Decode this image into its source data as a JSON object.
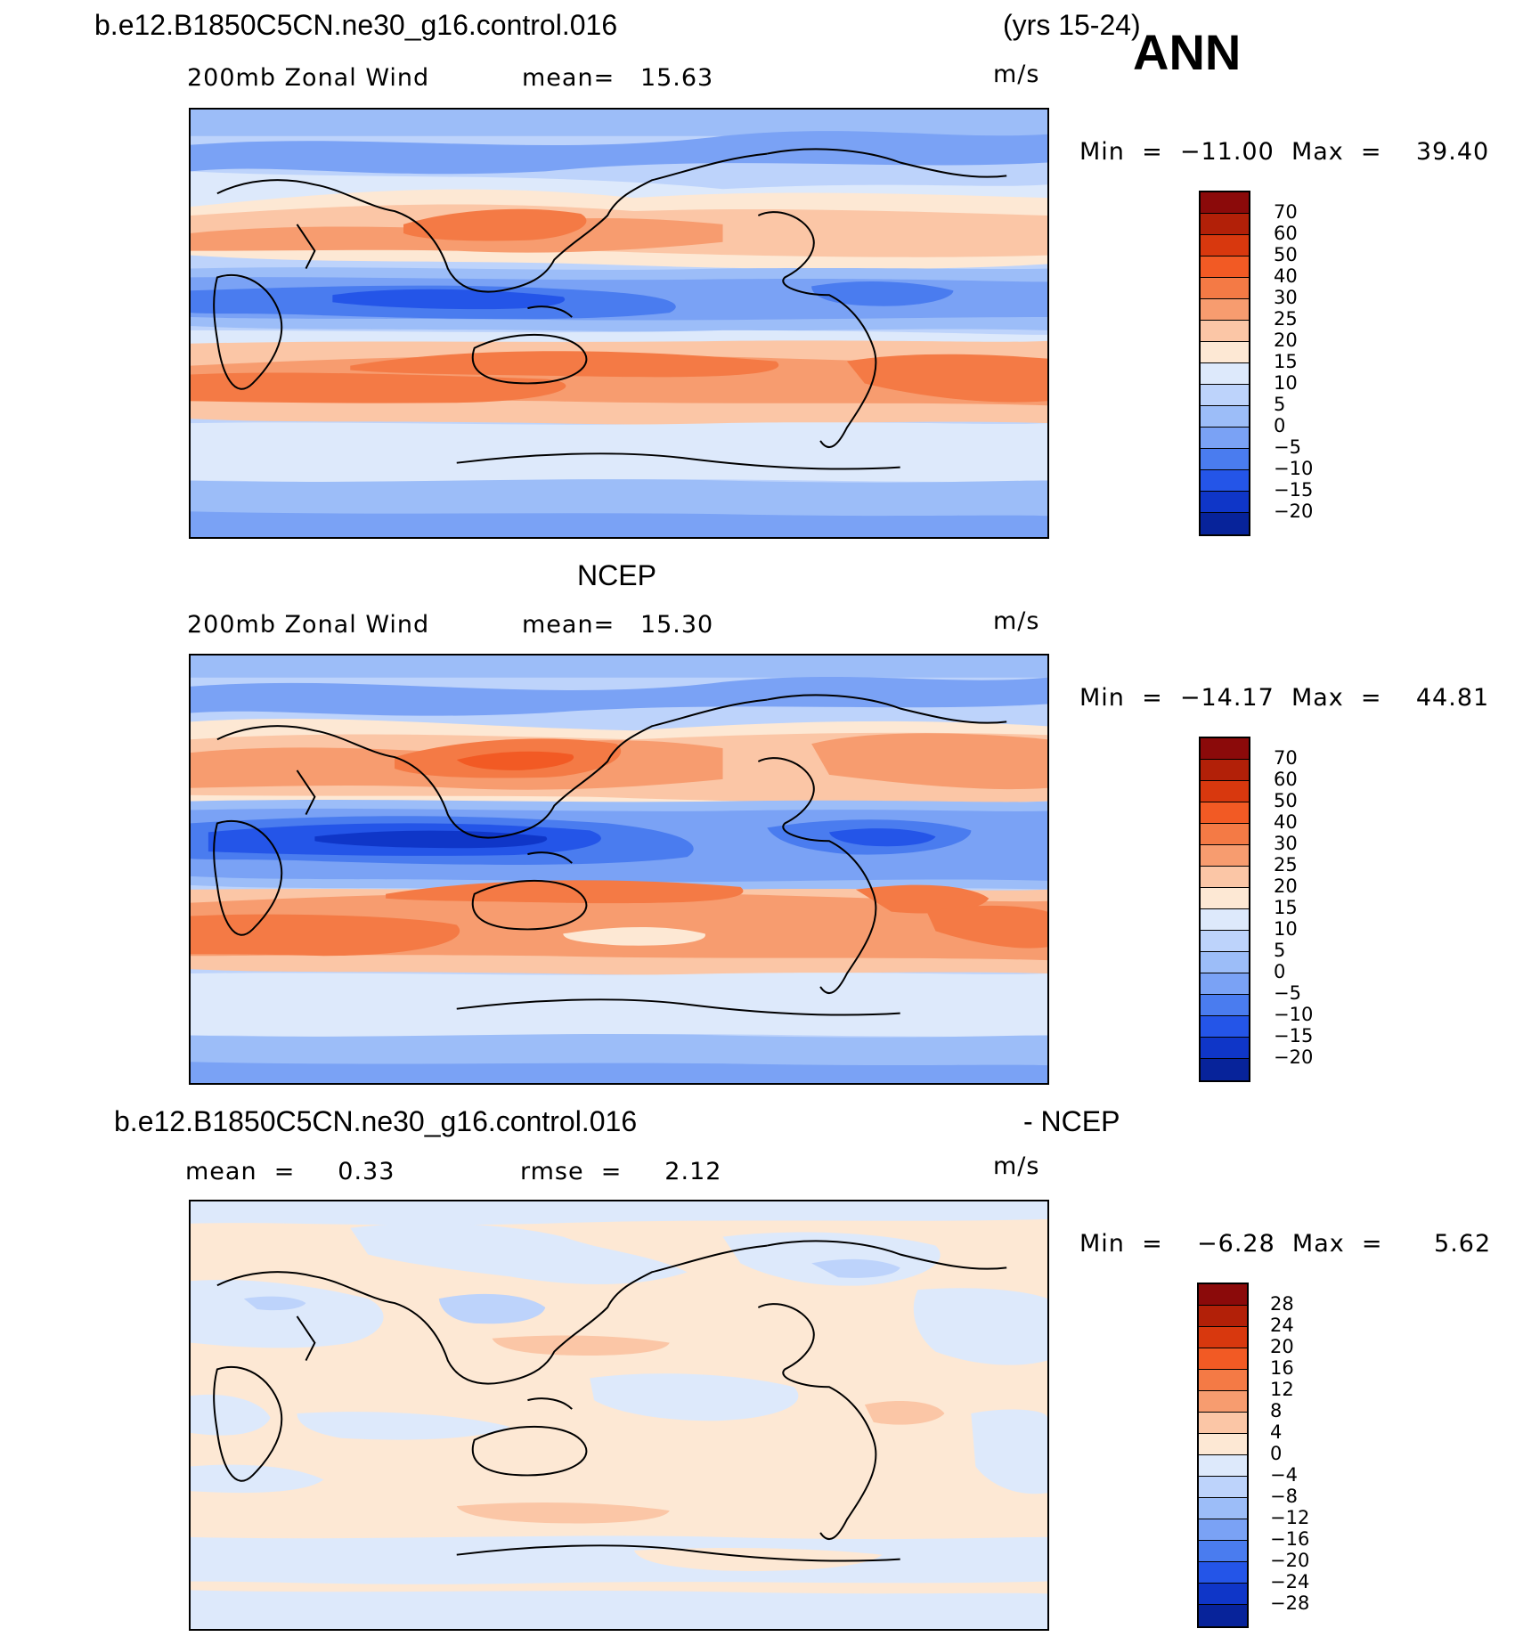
{
  "header": {
    "case_name": "b.e12.B1850C5CN.ne30_g16.control.016",
    "years": "(yrs 15-24)",
    "season": "ANN"
  },
  "panels": [
    {
      "title": "",
      "variable": "200mb Zonal Wind",
      "stat1": "mean=   15.63",
      "stat2": "",
      "units": "m/s",
      "minmax": "Min  =  −11.00  Max  =    39.40"
    },
    {
      "title": "NCEP",
      "variable": "200mb Zonal Wind",
      "stat1": "mean=   15.30",
      "stat2": "",
      "units": "m/s",
      "minmax": "Min  =  −14.17  Max  =    44.81"
    },
    {
      "title": "b.e12.B1850C5CN.ne30_g16.control.016",
      "title_right": "- NCEP",
      "variable": "mean  =     0.33",
      "stat1": "rmse  =     2.12",
      "stat2": "",
      "units": "m/s",
      "minmax": "Min  =    −6.28  Max  =      5.62"
    }
  ],
  "colorbars": {
    "field": {
      "labels": [
        "70",
        "60",
        "50",
        "40",
        "30",
        "25",
        "20",
        "15",
        "10",
        "5",
        "0",
        "−5",
        "−10",
        "−15",
        "−20"
      ],
      "colors": [
        "#8b0a0a",
        "#b22008",
        "#d8380e",
        "#f25a24",
        "#f47a45",
        "#f79c6f",
        "#fbc6a6",
        "#fde8d4",
        "#dde9fb",
        "#bdd3fb",
        "#9cbdf8",
        "#7aa2f5",
        "#4a7cef",
        "#2455e8",
        "#0f36c8",
        "#07239a"
      ]
    },
    "diff": {
      "labels": [
        "28",
        "24",
        "20",
        "16",
        "12",
        "8",
        "4",
        "0",
        "−4",
        "−8",
        "−12",
        "−16",
        "−20",
        "−24",
        "−28"
      ],
      "colors": [
        "#8b0a0a",
        "#b22008",
        "#d8380e",
        "#f25a24",
        "#f47a45",
        "#f79c6f",
        "#fbc6a6",
        "#fde8d4",
        "#dde9fb",
        "#bdd3fb",
        "#9cbdf8",
        "#7aa2f5",
        "#4a7cef",
        "#2455e8",
        "#0f36c8",
        "#07239a"
      ]
    }
  }
}
